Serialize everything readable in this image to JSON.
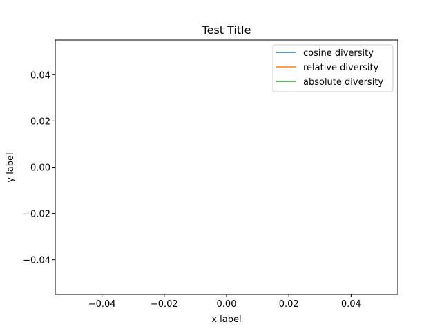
{
  "chart_data": {
    "type": "line",
    "title": "Test Title",
    "xlabel": "x label",
    "ylabel": "y label",
    "xlim": [
      -0.055,
      0.055
    ],
    "ylim": [
      -0.055,
      0.055
    ],
    "x_ticks": [
      {
        "value": -0.04,
        "label": "−0.04"
      },
      {
        "value": -0.02,
        "label": "−0.02"
      },
      {
        "value": 0.0,
        "label": "0.00"
      },
      {
        "value": 0.02,
        "label": "0.02"
      },
      {
        "value": 0.04,
        "label": "0.04"
      }
    ],
    "y_ticks": [
      {
        "value": -0.04,
        "label": "−0.04"
      },
      {
        "value": -0.02,
        "label": "−0.02"
      },
      {
        "value": 0.0,
        "label": "0.00"
      },
      {
        "value": 0.02,
        "label": "0.02"
      },
      {
        "value": 0.04,
        "label": "0.04"
      }
    ],
    "grid": false,
    "legend_position": "upper-right",
    "series": [
      {
        "name": "cosine diversity",
        "color": "#1f77b4",
        "x": [],
        "y": []
      },
      {
        "name": "relative diversity",
        "color": "#ff7f0e",
        "x": [],
        "y": []
      },
      {
        "name": "absolute diversity",
        "color": "#2ca02c",
        "x": [],
        "y": []
      }
    ]
  }
}
